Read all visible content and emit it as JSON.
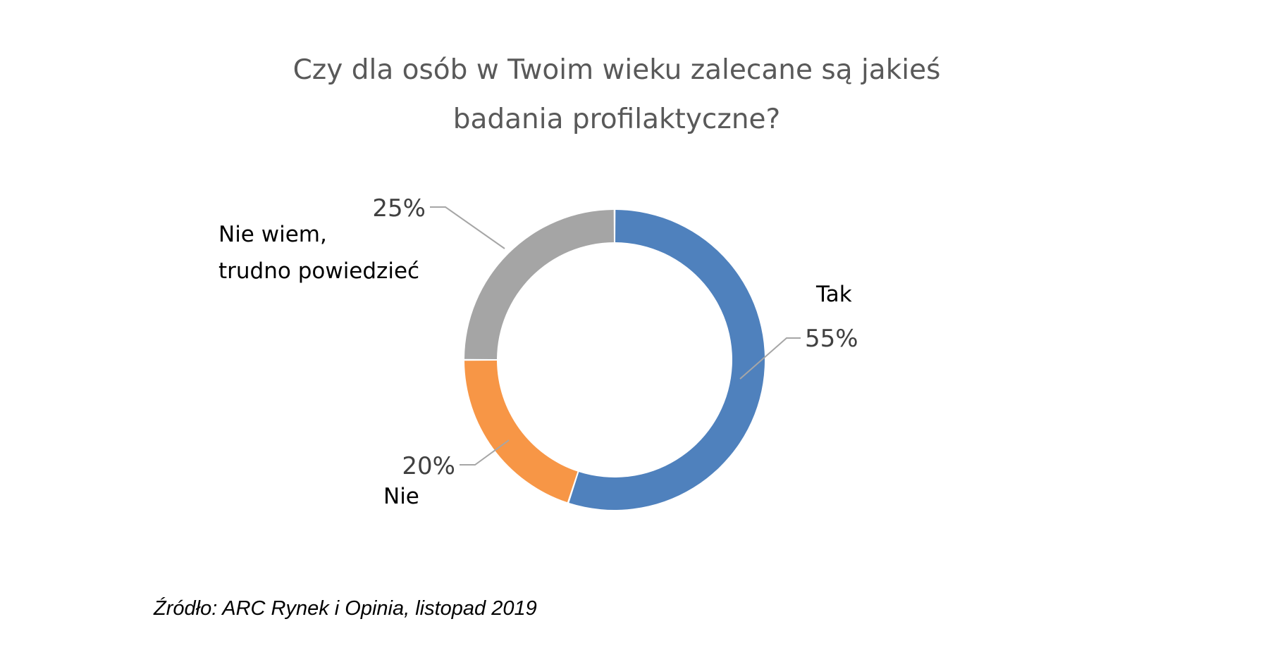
{
  "chart_data": {
    "type": "pie",
    "variant": "donut",
    "title_lines": [
      "Czy dla osób w Twoim wieku zalecane są jakieś",
      "badania profilaktyczne?"
    ],
    "slices": [
      {
        "label": "Tak",
        "value": 55,
        "value_label": "55%",
        "color": "#4f81bd"
      },
      {
        "label": "Nie",
        "value": 20,
        "value_label": "20%",
        "color": "#f79646"
      },
      {
        "label_lines": [
          "Nie wiem,",
          "trudno powiedzieć"
        ],
        "value": 25,
        "value_label": "25%",
        "color": "#a5a5a5"
      }
    ],
    "source": "Źródło: ARC Rynek i Opinia, listopad 2019"
  }
}
